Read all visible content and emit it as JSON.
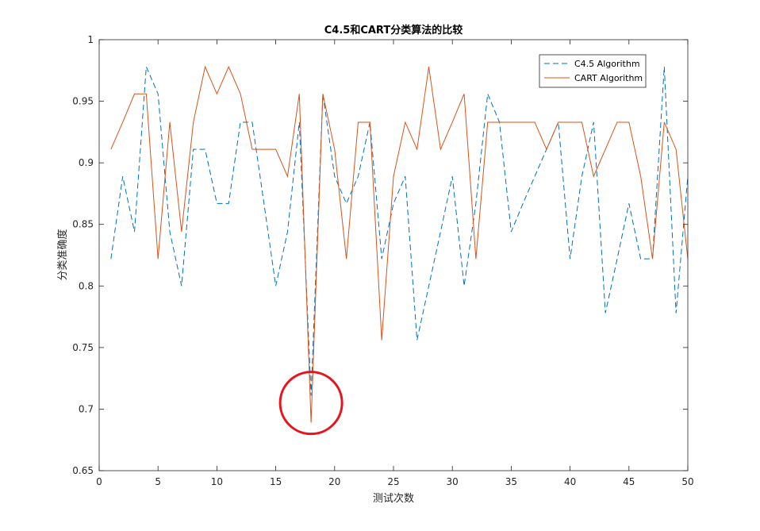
{
  "chart_data": {
    "type": "line",
    "title": "C4.5和CART分类算法的比较",
    "xlabel": "测试次数",
    "ylabel": "分类准确度",
    "xlim": [
      0,
      50
    ],
    "ylim": [
      0.65,
      1
    ],
    "xticks": [
      0,
      5,
      10,
      15,
      20,
      25,
      30,
      35,
      40,
      45,
      50
    ],
    "yticks": [
      0.65,
      0.7,
      0.75,
      0.8,
      0.85,
      0.9,
      0.95,
      1
    ],
    "ytick_labels": [
      "0.65",
      "0.7",
      "0.75",
      "0.8",
      "0.85",
      "0.9",
      "0.95",
      "1"
    ],
    "grid": false,
    "legend_position": "top-right",
    "x": [
      1,
      2,
      3,
      4,
      5,
      6,
      7,
      8,
      9,
      10,
      11,
      12,
      13,
      14,
      15,
      16,
      17,
      18,
      19,
      20,
      21,
      22,
      23,
      24,
      25,
      26,
      27,
      28,
      29,
      30,
      31,
      32,
      33,
      34,
      35,
      36,
      37,
      38,
      39,
      40,
      41,
      42,
      43,
      44,
      45,
      46,
      47,
      48,
      49,
      50
    ],
    "series": [
      {
        "name": "C4.5 Algorithm",
        "color": "#0072BD",
        "style": "dashed",
        "values": [
          0.822,
          0.889,
          0.844,
          0.978,
          0.956,
          0.844,
          0.8,
          0.911,
          0.911,
          0.867,
          0.867,
          0.933,
          0.933,
          0.867,
          0.8,
          0.844,
          0.933,
          0.711,
          0.956,
          0.889,
          0.867,
          0.889,
          0.933,
          0.822,
          0.867,
          0.889,
          0.756,
          0.8,
          0.844,
          0.889,
          0.8,
          0.867,
          0.956,
          0.933,
          0.844,
          0.867,
          0.889,
          0.911,
          0.933,
          0.822,
          0.889,
          0.933,
          0.778,
          0.822,
          0.867,
          0.822,
          0.822,
          0.978,
          0.778,
          0.889
        ]
      },
      {
        "name": "CART Algorithm",
        "color": "#D95319",
        "style": "solid",
        "values": [
          0.911,
          0.933,
          0.956,
          0.956,
          0.822,
          0.933,
          0.844,
          0.933,
          0.978,
          0.956,
          0.978,
          0.956,
          0.911,
          0.911,
          0.911,
          0.889,
          0.956,
          0.689,
          0.956,
          0.911,
          0.822,
          0.933,
          0.933,
          0.756,
          0.889,
          0.933,
          0.911,
          0.978,
          0.911,
          0.933,
          0.956,
          0.822,
          0.933,
          0.933,
          0.933,
          0.933,
          0.933,
          0.911,
          0.933,
          0.933,
          0.933,
          0.889,
          0.911,
          0.933,
          0.933,
          0.889,
          0.822,
          0.933,
          0.911,
          0.822
        ]
      }
    ],
    "annotations": [
      {
        "type": "circle",
        "center_x": 18,
        "center_y": 0.705,
        "color": "#E8141C"
      }
    ]
  }
}
